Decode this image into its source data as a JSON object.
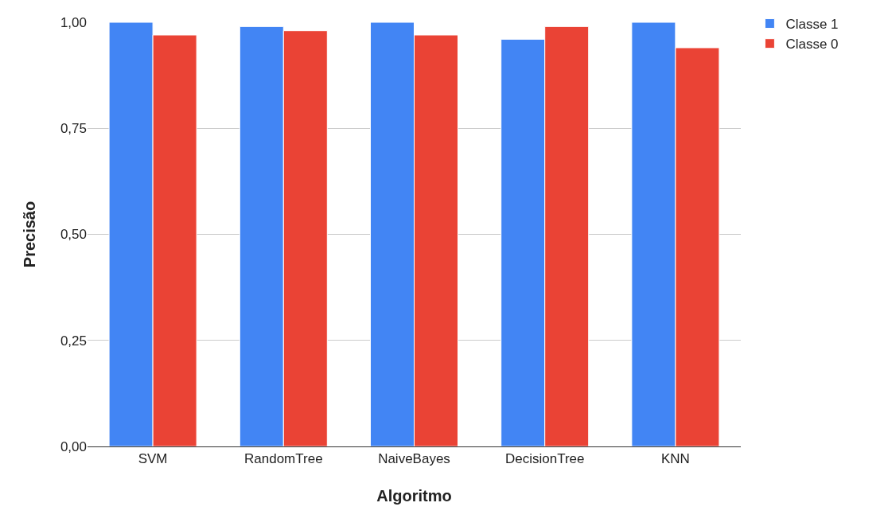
{
  "chart_data": {
    "type": "bar",
    "xlabel": "Algoritmo",
    "ylabel": "Precisão",
    "categories": [
      "SVM",
      "RandomTree",
      "NaiveBayes",
      "DecisionTree",
      "KNN"
    ],
    "series": [
      {
        "name": "Classe 1",
        "color": "#4285f4",
        "values": [
          1.0,
          0.99,
          1.0,
          0.96,
          1.0
        ]
      },
      {
        "name": "Classe 0",
        "color": "#ea4335",
        "values": [
          0.97,
          0.98,
          0.97,
          0.99,
          0.94
        ]
      }
    ],
    "ylim": [
      0,
      1.0
    ],
    "yticks": [
      {
        "value": 0,
        "label": "0,00"
      },
      {
        "value": 0.25,
        "label": "0,25"
      },
      {
        "value": 0.5,
        "label": "0,50"
      },
      {
        "value": 0.75,
        "label": "0,75"
      },
      {
        "value": 1.0,
        "label": "1,00"
      }
    ],
    "grid": "y",
    "legend": "top right"
  }
}
